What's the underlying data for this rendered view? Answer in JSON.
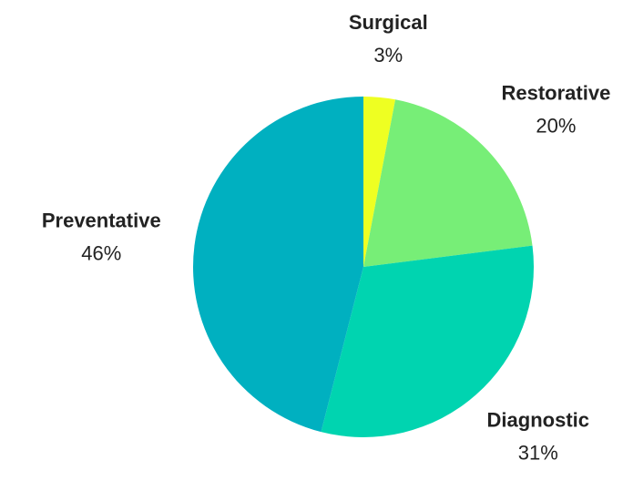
{
  "chart_data": {
    "type": "pie",
    "categories": [
      "Surgical",
      "Restorative",
      "Diagnostic",
      "Preventative"
    ],
    "values": [
      3,
      20,
      31,
      46
    ],
    "value_labels": [
      "3%",
      "20%",
      "31%",
      "46%"
    ],
    "colors": [
      "#eeff22",
      "#77ee77",
      "#00d4b0",
      "#00b0c0"
    ]
  }
}
